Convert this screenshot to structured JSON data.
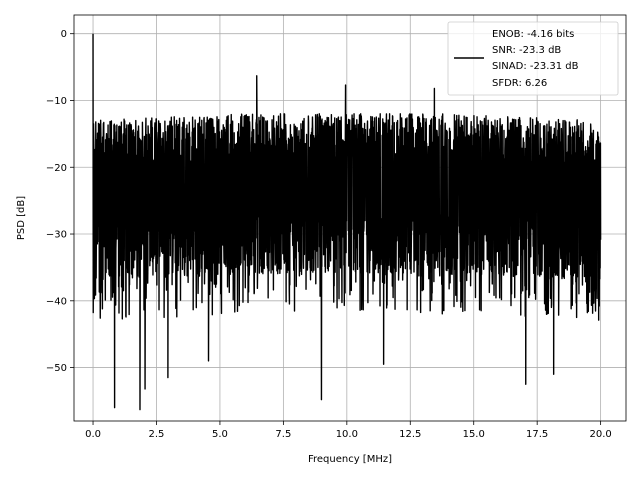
{
  "chart_data": {
    "type": "line",
    "xlabel": "Frequency [MHz]",
    "ylabel": "PSD [dB]",
    "xlim": [
      -0.75,
      21.0
    ],
    "ylim": [
      -58.0,
      2.8
    ],
    "x_ticks": [
      0.0,
      2.5,
      5.0,
      7.5,
      10.0,
      12.5,
      15.0,
      17.5,
      20.0
    ],
    "x_tick_labels": [
      "0.0",
      "2.5",
      "5.0",
      "7.5",
      "10.0",
      "12.5",
      "15.0",
      "17.5",
      "20.0"
    ],
    "y_ticks": [
      0,
      -10,
      -20,
      -30,
      -40,
      -50
    ],
    "y_tick_labels": [
      "0",
      "−10",
      "−20",
      "−30",
      "−40",
      "−50"
    ],
    "grid": true,
    "legend_position": "top-right",
    "legend_lines": [
      "ENOB: -4.16 bits",
      "SNR: -23.3 dB",
      "SINAD: -23.31 dB",
      "SFDR: 6.26"
    ],
    "series": [
      {
        "color": "#000000",
        "noise_floor_db": -24,
        "peak_db": 0.0,
        "peak_freq_mhz": 0.0,
        "spurs": [
          {
            "x": 0.02,
            "y": -13.5
          },
          {
            "x": 6.45,
            "y": -6.3
          },
          {
            "x": 9.95,
            "y": -7.7
          },
          {
            "x": 13.45,
            "y": -8.2
          }
        ],
        "dips": [
          {
            "x": 0.85,
            "y": -56.0
          },
          {
            "x": 1.85,
            "y": -56.3
          },
          {
            "x": 2.05,
            "y": -53.2
          },
          {
            "x": 2.95,
            "y": -51.5
          },
          {
            "x": 4.55,
            "y": -49.0
          },
          {
            "x": 9.0,
            "y": -54.8
          },
          {
            "x": 11.45,
            "y": -49.5
          },
          {
            "x": 17.05,
            "y": -52.5
          },
          {
            "x": 18.15,
            "y": -51.0
          }
        ]
      }
    ]
  }
}
